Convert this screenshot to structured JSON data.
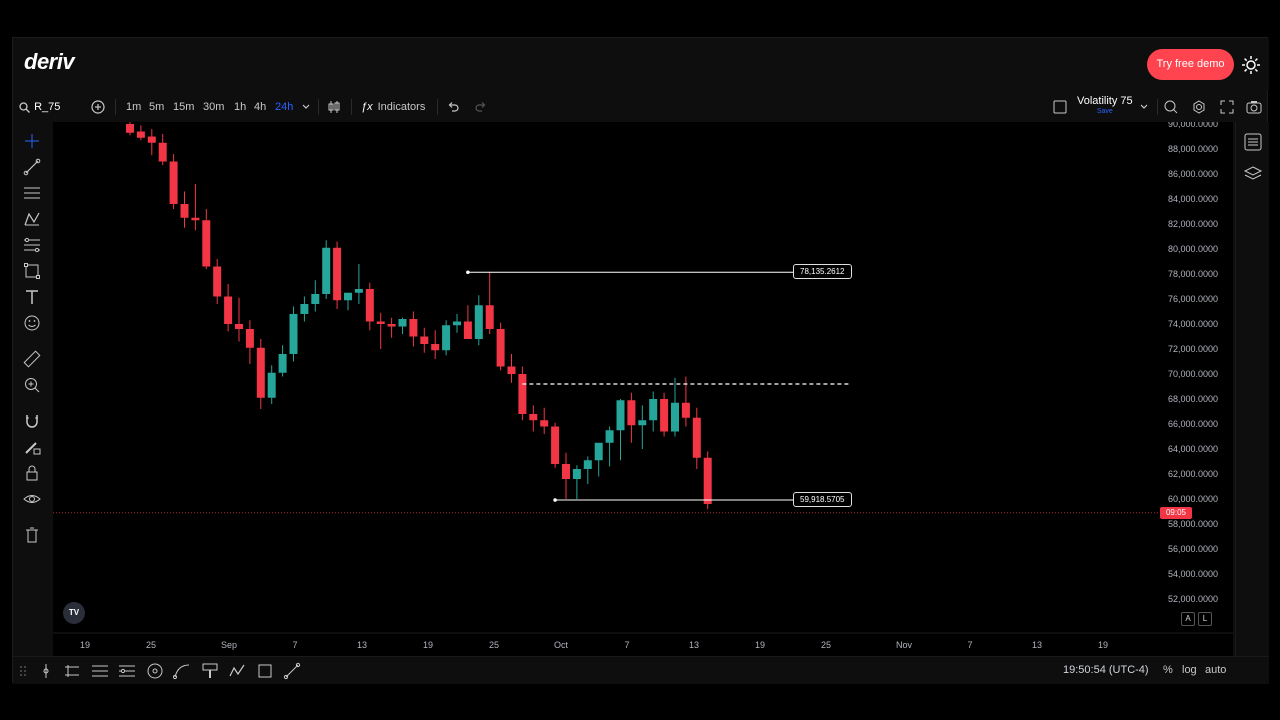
{
  "app": {
    "logo": "deriv",
    "demo_button": "Try free demo",
    "theme_icon": "sun-icon"
  },
  "toolbar": {
    "symbol": "R_75",
    "search_icon": "search-icon",
    "add_icon": "plus-circle-icon",
    "timeframes": [
      "1m",
      "5m",
      "15m",
      "30m",
      "1h",
      "4h",
      "24h"
    ],
    "active_timeframe": "24h",
    "indicators_label": "Indicators",
    "market_name": "Volatility 75",
    "save_label": "Save"
  },
  "drawing": {
    "resistance_label": "78,135.2612",
    "support_label": "59,918.5705",
    "current_price_tag": "09:05"
  },
  "chart_data": {
    "type": "candlestick",
    "price_scale": [
      "90,000.0000",
      "88,000.0000",
      "86,000.0000",
      "84,000.0000",
      "82,000.0000",
      "80,000.0000",
      "78,000.0000",
      "76,000.0000",
      "74,000.0000",
      "72,000.0000",
      "70,000.0000",
      "68,000.0000",
      "66,000.0000",
      "64,000.0000",
      "62,000.0000",
      "60,000.0000",
      "58,000.0000",
      "56,000.0000",
      "54,000.0000",
      "52,000.0000"
    ],
    "ylim": [
      51000,
      90500
    ],
    "x_ticks": [
      "19",
      "25",
      "Sep",
      "7",
      "13",
      "19",
      "25",
      "Oct",
      "7",
      "13",
      "19",
      "25",
      "Nov",
      "7",
      "13",
      "19"
    ],
    "up_color": "#26a69a",
    "down_color": "#f23645",
    "candles": [
      {
        "o": 90000,
        "h": 90300,
        "l": 89100,
        "c": 89300
      },
      {
        "o": 89400,
        "h": 89900,
        "l": 88700,
        "c": 88900
      },
      {
        "o": 89000,
        "h": 89600,
        "l": 87500,
        "c": 88500
      },
      {
        "o": 88500,
        "h": 89200,
        "l": 86700,
        "c": 87000
      },
      {
        "o": 87000,
        "h": 87600,
        "l": 83200,
        "c": 83600
      },
      {
        "o": 83600,
        "h": 84600,
        "l": 81700,
        "c": 82500
      },
      {
        "o": 82500,
        "h": 85200,
        "l": 81500,
        "c": 82300
      },
      {
        "o": 82300,
        "h": 83200,
        "l": 78400,
        "c": 78600
      },
      {
        "o": 78600,
        "h": 79200,
        "l": 75600,
        "c": 76200
      },
      {
        "o": 76200,
        "h": 77200,
        "l": 73400,
        "c": 74000
      },
      {
        "o": 74000,
        "h": 76100,
        "l": 72600,
        "c": 73600
      },
      {
        "o": 73600,
        "h": 74300,
        "l": 70800,
        "c": 72100
      },
      {
        "o": 72100,
        "h": 72800,
        "l": 67200,
        "c": 68100
      },
      {
        "o": 68100,
        "h": 70700,
        "l": 67600,
        "c": 70100
      },
      {
        "o": 70100,
        "h": 72300,
        "l": 69800,
        "c": 71600
      },
      {
        "o": 71600,
        "h": 75400,
        "l": 71000,
        "c": 74800
      },
      {
        "o": 74800,
        "h": 76200,
        "l": 74200,
        "c": 75600
      },
      {
        "o": 75600,
        "h": 77500,
        "l": 75000,
        "c": 76400
      },
      {
        "o": 76400,
        "h": 80700,
        "l": 76000,
        "c": 80100
      },
      {
        "o": 80100,
        "h": 80600,
        "l": 75200,
        "c": 75900
      },
      {
        "o": 75900,
        "h": 76500,
        "l": 75100,
        "c": 76500
      },
      {
        "o": 76500,
        "h": 78800,
        "l": 75600,
        "c": 76800
      },
      {
        "o": 76800,
        "h": 77300,
        "l": 73500,
        "c": 74200
      },
      {
        "o": 74200,
        "h": 74900,
        "l": 72000,
        "c": 74000
      },
      {
        "o": 74000,
        "h": 74500,
        "l": 72900,
        "c": 73800
      },
      {
        "o": 73800,
        "h": 74500,
        "l": 73200,
        "c": 74400
      },
      {
        "o": 74400,
        "h": 75000,
        "l": 72200,
        "c": 73000
      },
      {
        "o": 73000,
        "h": 73700,
        "l": 71700,
        "c": 72400
      },
      {
        "o": 72400,
        "h": 73500,
        "l": 71200,
        "c": 71900
      },
      {
        "o": 71900,
        "h": 74300,
        "l": 71500,
        "c": 73900
      },
      {
        "o": 73900,
        "h": 74800,
        "l": 73300,
        "c": 74200
      },
      {
        "o": 74200,
        "h": 75500,
        "l": 73100,
        "c": 72800
      },
      {
        "o": 72800,
        "h": 76300,
        "l": 72300,
        "c": 75500
      },
      {
        "o": 75500,
        "h": 78200,
        "l": 73200,
        "c": 73600
      },
      {
        "o": 73600,
        "h": 74100,
        "l": 70300,
        "c": 70600
      },
      {
        "o": 70600,
        "h": 71600,
        "l": 69300,
        "c": 70000
      },
      {
        "o": 70000,
        "h": 70600,
        "l": 66300,
        "c": 66800
      },
      {
        "o": 66800,
        "h": 67500,
        "l": 65400,
        "c": 66300
      },
      {
        "o": 66300,
        "h": 67300,
        "l": 65200,
        "c": 65800
      },
      {
        "o": 65800,
        "h": 66100,
        "l": 62500,
        "c": 62800
      },
      {
        "o": 62800,
        "h": 63700,
        "l": 60000,
        "c": 61600
      },
      {
        "o": 61600,
        "h": 62700,
        "l": 60000,
        "c": 62400
      },
      {
        "o": 62400,
        "h": 63400,
        "l": 61200,
        "c": 63100
      },
      {
        "o": 63100,
        "h": 64300,
        "l": 61800,
        "c": 64500
      },
      {
        "o": 64500,
        "h": 65800,
        "l": 62600,
        "c": 65500
      },
      {
        "o": 65500,
        "h": 68000,
        "l": 63100,
        "c": 67900
      },
      {
        "o": 67900,
        "h": 68500,
        "l": 64500,
        "c": 65900
      },
      {
        "o": 65900,
        "h": 67500,
        "l": 64000,
        "c": 66300
      },
      {
        "o": 66300,
        "h": 68600,
        "l": 65400,
        "c": 68000
      },
      {
        "o": 68000,
        "h": 68500,
        "l": 65000,
        "c": 65400
      },
      {
        "o": 65400,
        "h": 69700,
        "l": 65000,
        "c": 67700
      },
      {
        "o": 67700,
        "h": 69800,
        "l": 65800,
        "c": 66500
      },
      {
        "o": 66500,
        "h": 67300,
        "l": 62400,
        "c": 63300
      },
      {
        "o": 63300,
        "h": 63800,
        "l": 59200,
        "c": 59600
      }
    ],
    "resistance": 78135.2612,
    "support": 59918.5705,
    "dashed_level": 69200,
    "current_price": 58900
  },
  "bottombar": {
    "clock": "19:50:54 (UTC-4)",
    "percent": "%",
    "log": "log",
    "auto": "auto",
    "scale_a": "A",
    "scale_l": "L"
  }
}
